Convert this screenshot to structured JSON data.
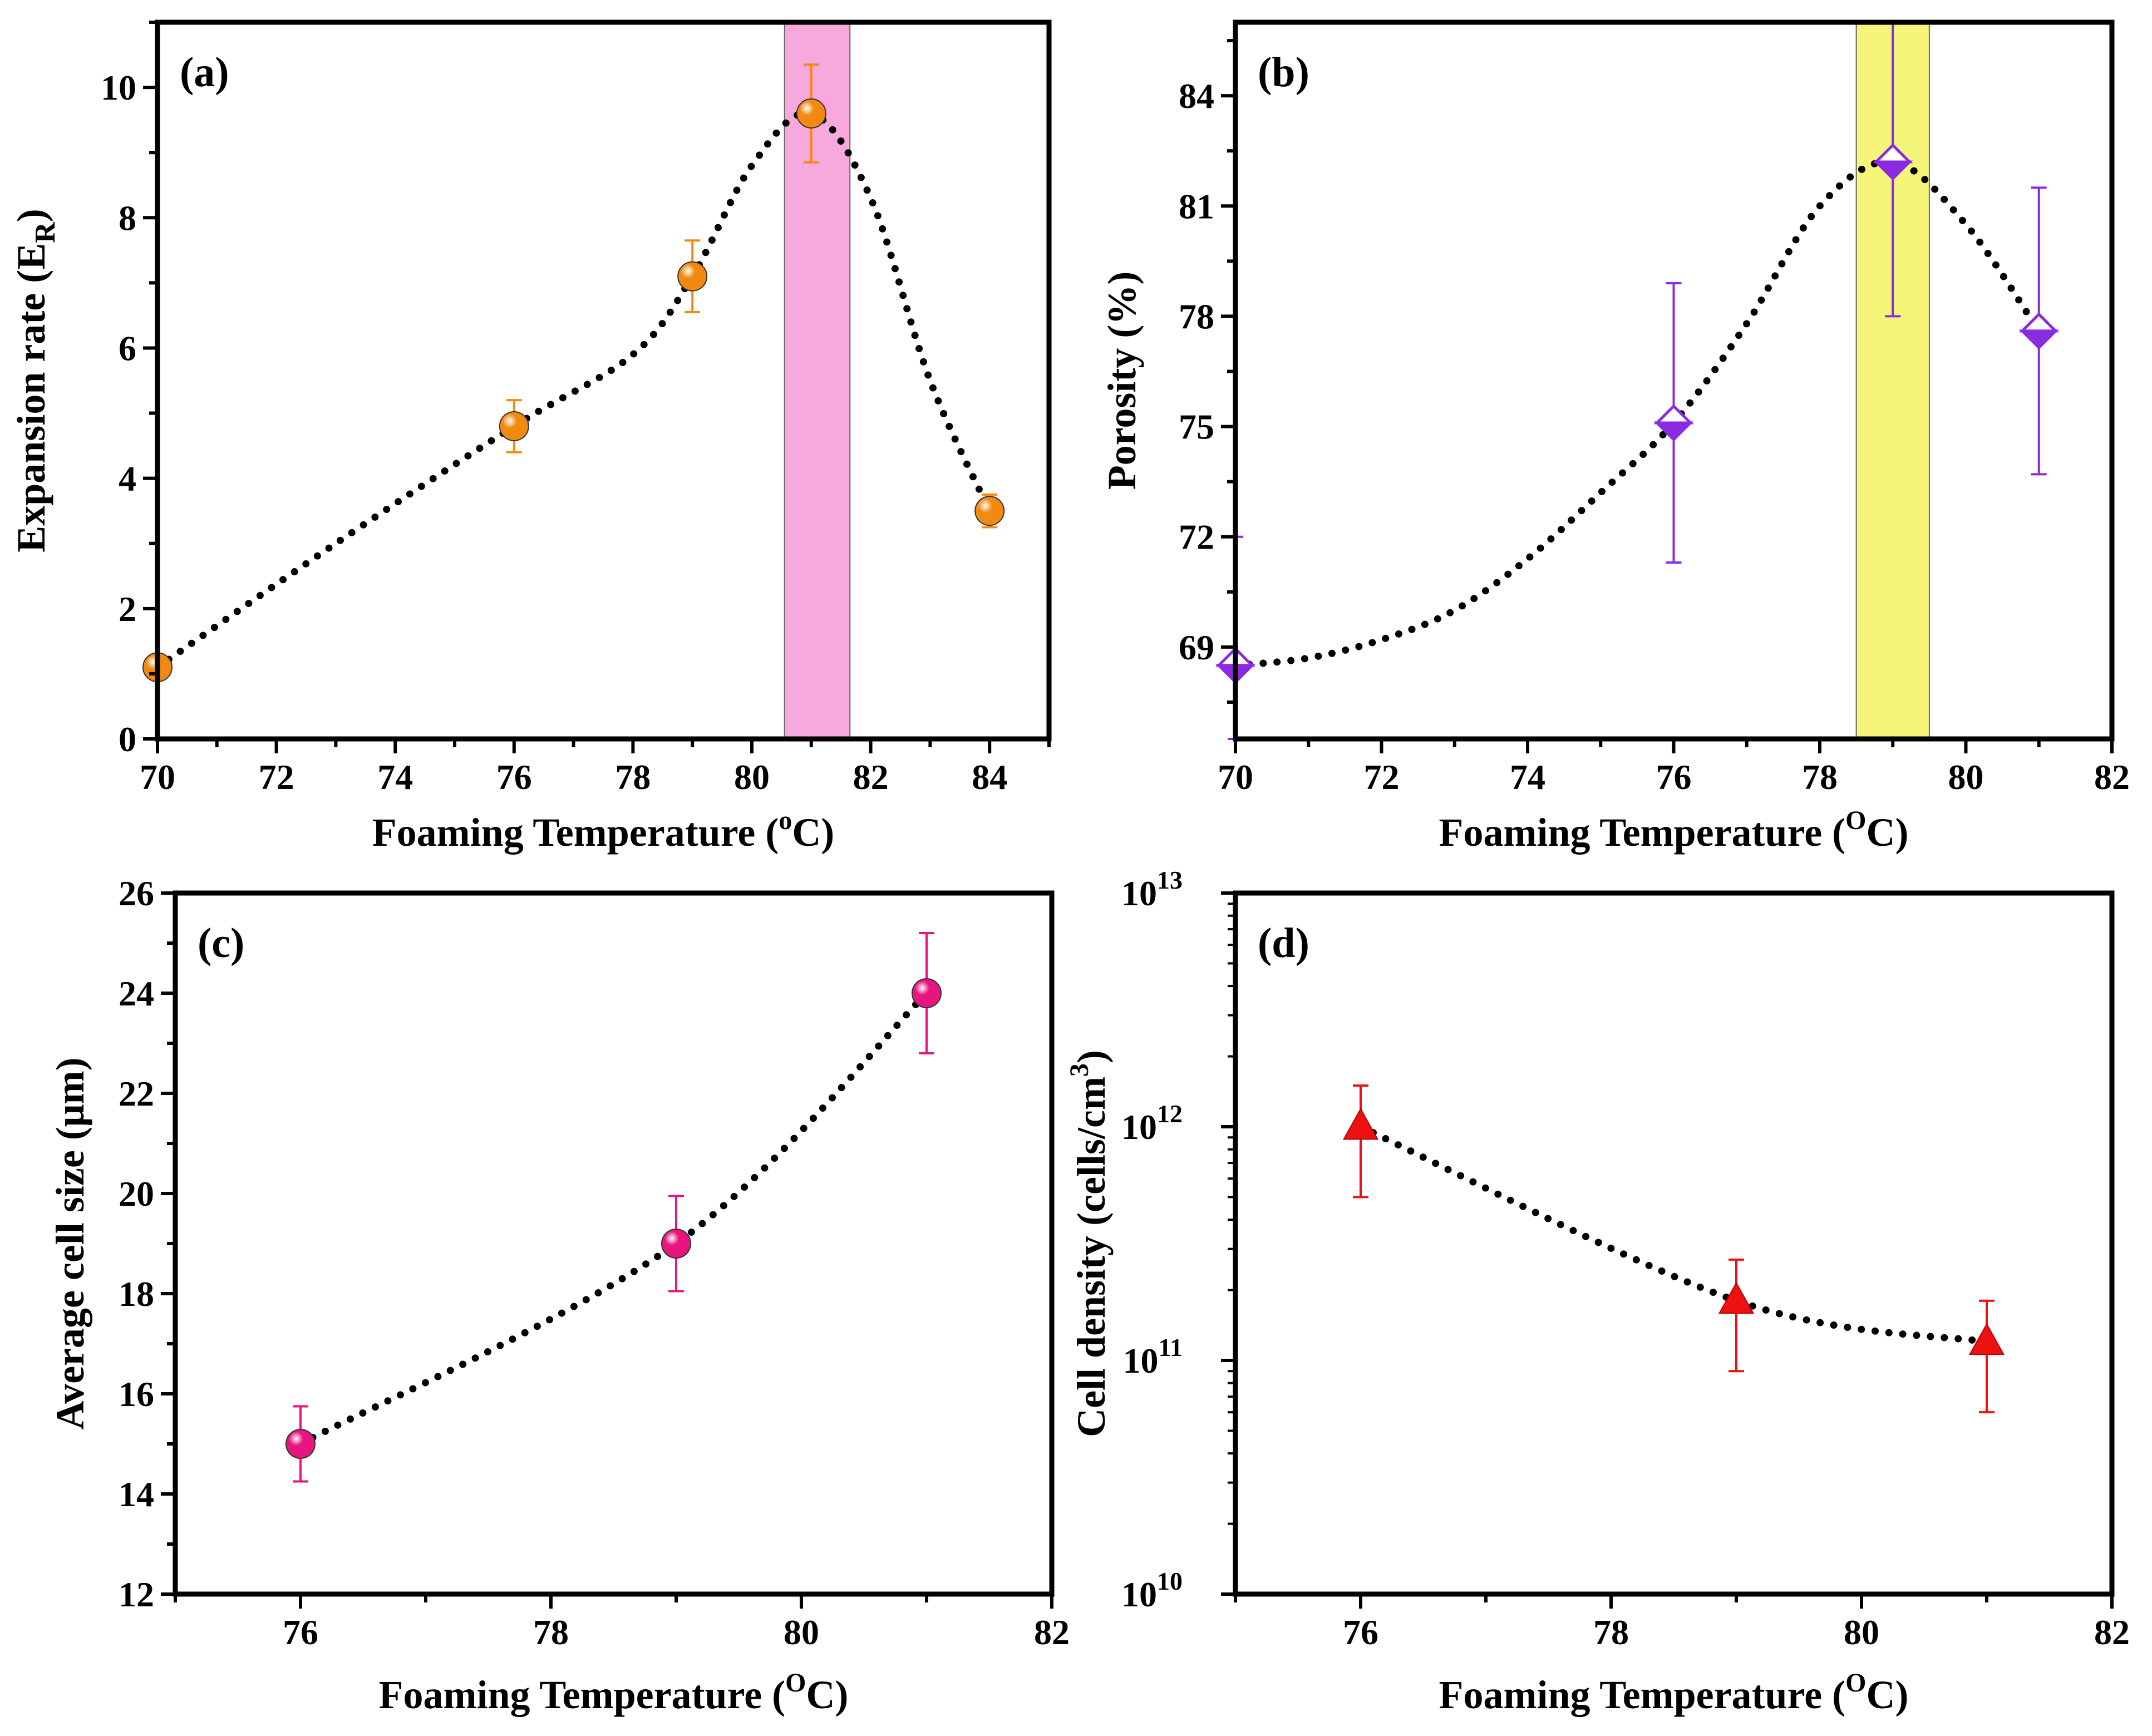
{
  "chart_data": [
    {
      "id": "a",
      "type": "scatter",
      "panel_label": "(a)",
      "xlabel": "Foaming Temperature (",
      "xlabel_sup": "o",
      "xlabel_tail": "C)",
      "ylabel": "Expansion rate (E",
      "ylabel_sub": "R",
      "ylabel_tail": ")",
      "xlim": [
        70,
        85
      ],
      "ylim": [
        0,
        11
      ],
      "xticks": [
        70,
        72,
        74,
        76,
        78,
        80,
        82,
        84
      ],
      "yticks": [
        0,
        2,
        4,
        6,
        8,
        10
      ],
      "highlight": {
        "x0": 80.55,
        "x1": 81.65,
        "color": "#f7a8dc"
      },
      "series": [
        {
          "name": "Expansion rate",
          "color": "#f28a12",
          "marker": "sphere",
          "x": [
            70,
            76,
            79,
            81,
            84
          ],
          "y": [
            1.1,
            4.8,
            7.1,
            9.6,
            3.5
          ],
          "err": [
            0.15,
            0.4,
            0.55,
            0.75,
            0.25
          ]
        }
      ],
      "fit": {
        "x": [
          70,
          73,
          76,
          78,
          79,
          80,
          81,
          82,
          83,
          84
        ],
        "y": [
          1.1,
          3.0,
          4.8,
          5.9,
          7.1,
          8.8,
          9.6,
          8.3,
          5.5,
          3.5
        ]
      }
    },
    {
      "id": "b",
      "type": "scatter",
      "panel_label": "(b)",
      "xlabel": "Foaming Temperature (",
      "xlabel_sup": "O",
      "xlabel_tail": "C)",
      "ylabel": "Porosity (%)",
      "xlim": [
        70,
        82
      ],
      "ylim": [
        66.5,
        86
      ],
      "xticks": [
        70,
        72,
        74,
        76,
        78,
        80,
        82
      ],
      "yticks": [
        69,
        72,
        75,
        78,
        81,
        84
      ],
      "highlight": {
        "x0": 78.5,
        "x1": 79.5,
        "color": "#f5f57a"
      },
      "series": [
        {
          "name": "Porosity",
          "color": "#8a2be2",
          "marker": "half-diamond",
          "x": [
            70,
            76,
            79,
            81
          ],
          "y": [
            68.5,
            75.1,
            82.2,
            77.6
          ],
          "err": [
            3.5,
            3.8,
            4.2,
            3.9
          ]
        }
      ],
      "fit": {
        "x": [
          70,
          71,
          72,
          73,
          74,
          75,
          76,
          77,
          78,
          79,
          80,
          81
        ],
        "y": [
          68.5,
          68.7,
          69.2,
          70.0,
          71.4,
          73.2,
          75.1,
          77.8,
          81.0,
          82.2,
          80.5,
          77.6
        ]
      }
    },
    {
      "id": "c",
      "type": "scatter",
      "panel_label": "(c)",
      "xlabel": "Foaming Temperature (",
      "xlabel_sup": "O",
      "xlabel_tail": "C)",
      "ylabel": "Average cell size (μm)",
      "xlim": [
        75,
        82
      ],
      "ylim": [
        12,
        26
      ],
      "xticks": [
        76,
        78,
        80,
        82
      ],
      "yticks": [
        12,
        14,
        16,
        18,
        20,
        22,
        24,
        26
      ],
      "series": [
        {
          "name": "Average cell size",
          "color": "#e8147f",
          "marker": "sphere",
          "x": [
            76,
            79,
            81
          ],
          "y": [
            15,
            19,
            24
          ],
          "err": [
            0.75,
            0.95,
            1.2
          ]
        }
      ],
      "fit": {
        "x": [
          76,
          79,
          81
        ],
        "y": [
          15,
          19,
          24
        ]
      }
    },
    {
      "id": "d",
      "type": "scatter",
      "panel_label": "(d)",
      "xlabel": "Foaming Temperature (",
      "xlabel_sup": "O",
      "xlabel_tail": "C)",
      "ylabel": "Cell density (cells/cm",
      "ylabel_sup": "3",
      "ylabel_tail": ")",
      "yscale": "log",
      "xlim": [
        75,
        82
      ],
      "ylim_exp": [
        10,
        13
      ],
      "xticks": [
        76,
        78,
        80,
        82
      ],
      "yticks_exp": [
        10,
        11,
        12,
        13
      ],
      "ytick_base": "10",
      "series": [
        {
          "name": "Cell density",
          "color": "#ee1111",
          "marker": "triangle",
          "x": [
            76,
            79,
            81
          ],
          "y": [
            1000000000000.0,
            180000000000.0,
            120000000000.0
          ],
          "err_low": [
            500000000000.0,
            90000000000.0,
            60000000000.0
          ],
          "err_high": [
            1500000000000.0,
            270000000000.0,
            180000000000.0
          ]
        }
      ],
      "fit": {
        "x": [
          76,
          79,
          81
        ],
        "y": [
          1000000000000.0,
          180000000000.0,
          120000000000.0
        ]
      }
    }
  ]
}
